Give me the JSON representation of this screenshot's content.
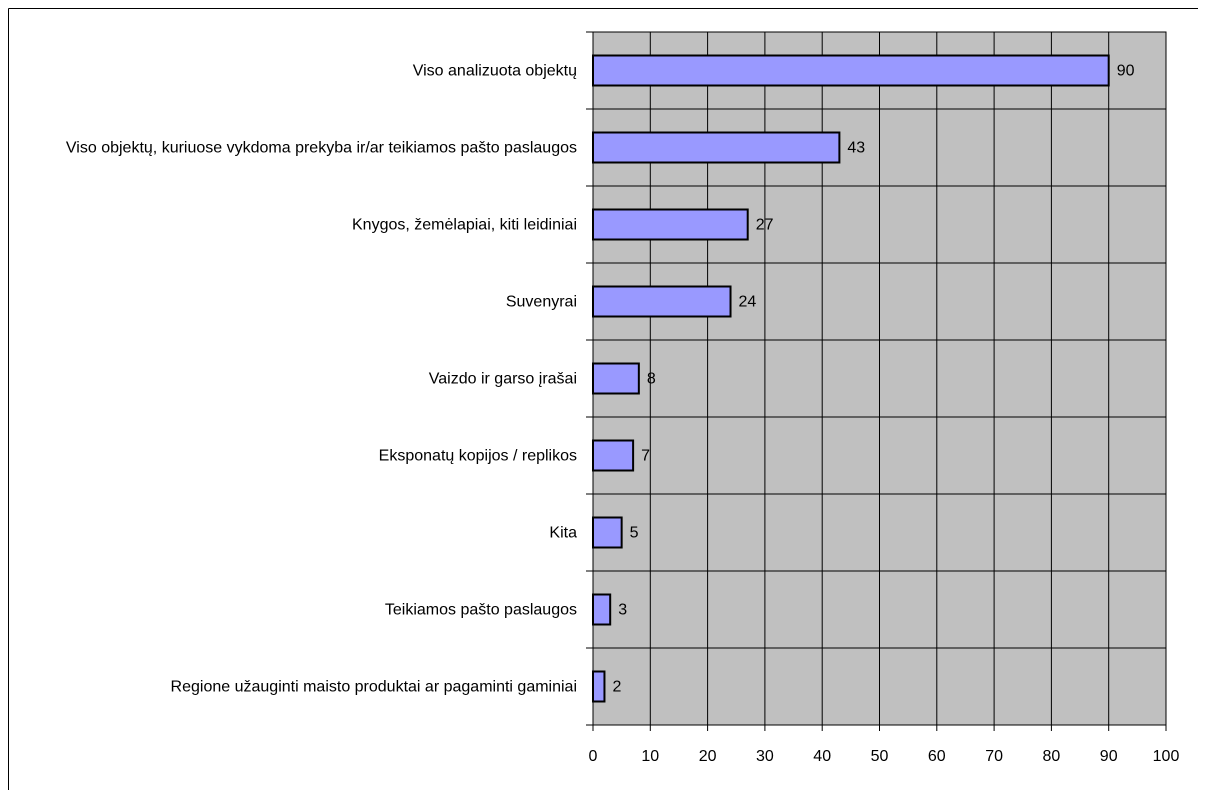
{
  "chart_data": {
    "type": "bar",
    "orientation": "horizontal",
    "categories": [
      "Viso analizuota objektų",
      "Viso objektų, kuriuose vykdoma prekyba ir/ar teikiamos pašto paslaugos",
      "Knygos, žemėlapiai, kiti leidiniai",
      "Suvenyrai",
      "Vaizdo ir garso įrašai",
      "Eksponatų kopijos / replikos",
      "Kita",
      "Teikiamos pašto paslaugos",
      "Regione užauginti maisto produktai ar pagaminti gaminiai"
    ],
    "values": [
      90,
      43,
      27,
      24,
      8,
      7,
      5,
      3,
      2
    ],
    "color": "#9999ff",
    "xlim": [
      0,
      100
    ],
    "xticks": [
      0,
      10,
      20,
      30,
      40,
      50,
      60,
      70,
      80,
      90,
      100
    ],
    "grid": true
  }
}
